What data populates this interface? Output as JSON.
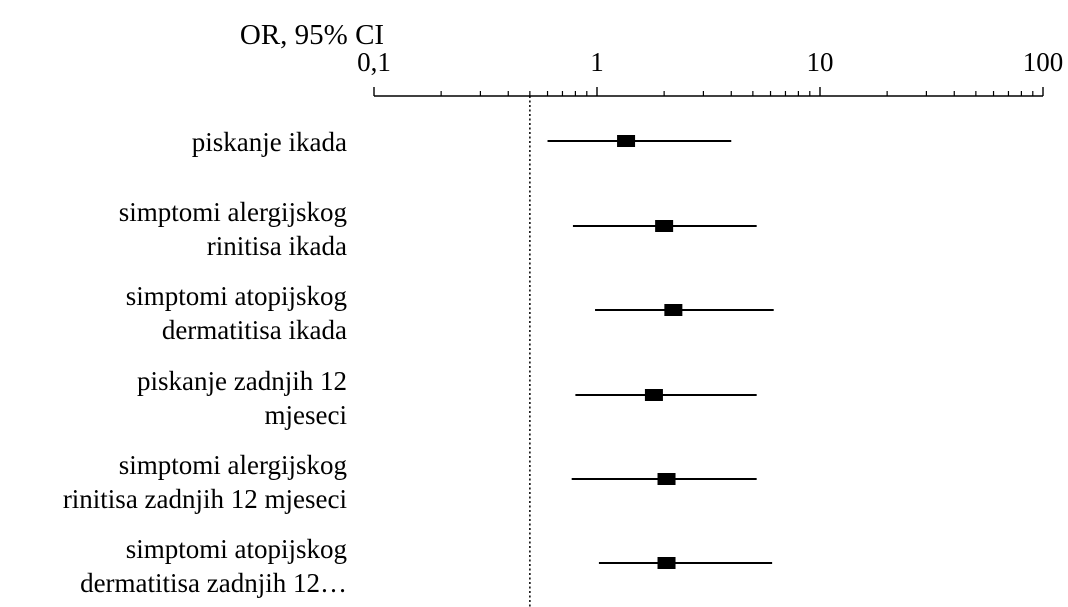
{
  "chart_data": {
    "type": "forest",
    "axis_title": "OR, 95% CI",
    "x_scale": "log",
    "xlim": [
      0.1,
      100
    ],
    "ticks": [
      {
        "value": 0.1,
        "label": "0,1"
      },
      {
        "value": 1,
        "label": "1"
      },
      {
        "value": 10,
        "label": "10"
      },
      {
        "value": 100,
        "label": "100"
      }
    ],
    "reference_line": 0.5,
    "rows": [
      {
        "label": [
          "piskanje ikada"
        ],
        "or": 1.35,
        "ci_low": 0.6,
        "ci_high": 4.0
      },
      {
        "label": [
          "simptomi alergijskog",
          "rinitisa ikada"
        ],
        "or": 2.0,
        "ci_low": 0.78,
        "ci_high": 5.2
      },
      {
        "label": [
          "simptomi atopijskog",
          "dermatitisa ikada"
        ],
        "or": 2.2,
        "ci_low": 0.98,
        "ci_high": 6.2
      },
      {
        "label": [
          "piskanje zadnjih 12",
          "mjeseci"
        ],
        "or": 1.8,
        "ci_low": 0.8,
        "ci_high": 5.2
      },
      {
        "label": [
          "simptomi alergijskog",
          "rinitisa zadnjih 12 mjeseci"
        ],
        "or": 2.05,
        "ci_low": 0.77,
        "ci_high": 5.2
      },
      {
        "label": [
          "simptomi atopijskog",
          "dermatitisa zadnjih 12…"
        ],
        "or": 2.05,
        "ci_low": 1.02,
        "ci_high": 6.1
      }
    ]
  }
}
